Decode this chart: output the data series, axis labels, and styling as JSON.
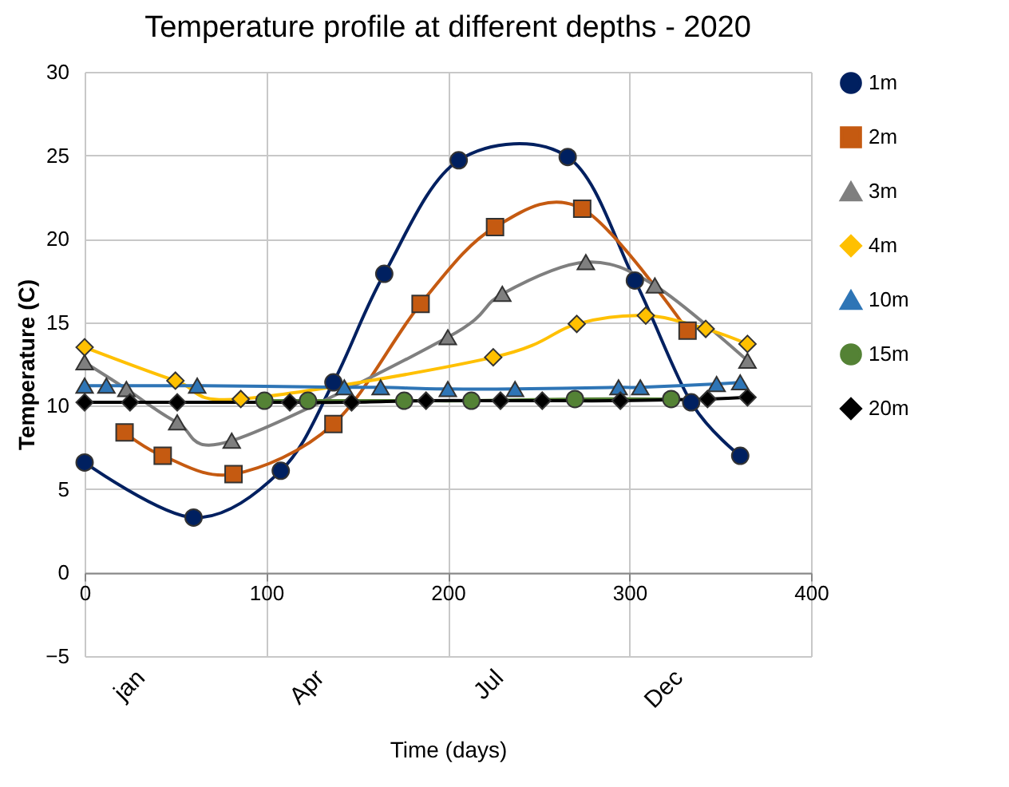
{
  "chart_data": {
    "type": "line",
    "title": "Temperature profile at different depths - 2020",
    "xlabel": "Time (days)",
    "ylabel": "Temperature (C)",
    "xlim": [
      0,
      400
    ],
    "xticks": [
      0,
      100,
      200,
      300,
      400
    ],
    "ylim": [
      -5,
      30
    ],
    "yticks": [
      -5,
      0,
      5,
      10,
      15,
      20,
      25,
      30
    ],
    "grid": true,
    "legend": "right",
    "line_style": "solid",
    "annotations": [
      "jan",
      "Apr",
      "Jul",
      "Dec"
    ],
    "series": [
      {
        "name": "1m",
        "color": "#002060",
        "marker": "circle",
        "x": [
          0,
          60,
          108,
          137,
          165,
          206,
          266,
          303,
          334,
          361
        ],
        "values": [
          6.6,
          3.3,
          6.1,
          11.4,
          17.9,
          24.7,
          24.9,
          17.5,
          10.2,
          7.0
        ]
      },
      {
        "name": "2m",
        "color": "#c55a11",
        "marker": "square",
        "x": [
          22,
          43,
          82,
          137,
          185,
          226,
          274,
          332
        ],
        "values": [
          8.4,
          7.0,
          5.9,
          8.9,
          16.1,
          20.7,
          21.8,
          14.5
        ]
      },
      {
        "name": "3m",
        "color": "#7f7f7f",
        "marker": "triangle",
        "x": [
          0,
          23,
          51,
          81,
          200,
          230,
          276,
          314,
          365
        ],
        "values": [
          12.6,
          11.0,
          9.0,
          7.9,
          14.1,
          16.7,
          18.6,
          17.2,
          12.7
        ]
      },
      {
        "name": "4m",
        "color": "#ffc000",
        "marker": "diamond",
        "x": [
          0,
          50,
          86,
          225,
          271,
          309,
          342,
          365
        ],
        "values": [
          13.5,
          11.5,
          10.4,
          12.9,
          14.9,
          15.4,
          14.6,
          13.7
        ]
      },
      {
        "name": "10m",
        "color": "#2e75b6",
        "marker": "triangle",
        "x": [
          0,
          12,
          62,
          143,
          163,
          200,
          237,
          294,
          306,
          348,
          361
        ],
        "values": [
          11.2,
          11.2,
          11.2,
          11.1,
          11.1,
          11.0,
          11.0,
          11.1,
          11.1,
          11.3,
          11.4
        ]
      },
      {
        "name": "15m",
        "color": "#548235",
        "marker": "circle",
        "x": [
          99,
          123,
          176,
          213,
          270,
          323
        ],
        "values": [
          10.3,
          10.3,
          10.3,
          10.3,
          10.4,
          10.4
        ]
      },
      {
        "name": "20m",
        "color": "#000000",
        "marker": "diamond",
        "x": [
          0,
          25,
          51,
          113,
          147,
          188,
          229,
          252,
          295,
          343,
          365
        ],
        "values": [
          10.2,
          10.2,
          10.2,
          10.2,
          10.2,
          10.3,
          10.3,
          10.3,
          10.3,
          10.4,
          10.5
        ]
      }
    ]
  }
}
